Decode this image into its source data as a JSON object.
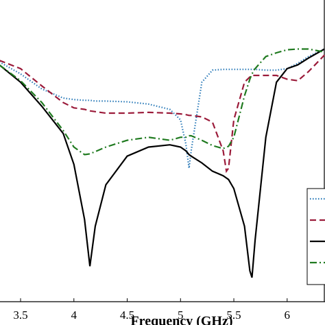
{
  "chart_data": {
    "type": "line",
    "xlabel": "Frequency (GHz)",
    "x": [
      3.3,
      3.5,
      3.7,
      3.9,
      4.0,
      4.1,
      4.15,
      4.2,
      4.3,
      4.5,
      4.7,
      4.9,
      5.0,
      5.05,
      5.08,
      5.1,
      5.2,
      5.3,
      5.4,
      5.43,
      5.45,
      5.5,
      5.6,
      5.65,
      5.67,
      5.7,
      5.8,
      5.9,
      6.0,
      6.1,
      6.2,
      6.35
    ],
    "series": [
      {
        "color": "#2a7ab8",
        "style": "dotted",
        "values": [
          -8.2,
          -9.8,
          -11.8,
          -13,
          -13.2,
          -13.3,
          -13.3,
          -13.4,
          -13.4,
          -13.5,
          -13.8,
          -14.5,
          -15.9,
          -19.1,
          -22.3,
          -20,
          -10.9,
          -9.3,
          -9.2,
          -9.2,
          -9.2,
          -9.2,
          -9.2,
          -9.2,
          -9.2,
          -9.2,
          -9.3,
          -9.3,
          -9.1,
          -8.4,
          -7.5,
          -6.5
        ]
      },
      {
        "color": "#9b1b3a",
        "style": "dashed",
        "values": [
          -8,
          -9.1,
          -11.4,
          -13.6,
          -14.3,
          -14.5,
          -14.7,
          -14.8,
          -15,
          -15,
          -14.9,
          -15,
          -15.1,
          -15.2,
          -15.3,
          -15.3,
          -15.5,
          -16.2,
          -20,
          -22.7,
          -22.3,
          -15.9,
          -10.9,
          -10.2,
          -10,
          -10,
          -10,
          -10,
          -10.5,
          -10.7,
          -9.5,
          -7.3
        ]
      },
      {
        "color": "#000000",
        "style": "solid",
        "values": [
          -8.6,
          -10.9,
          -14.1,
          -17.7,
          -21.8,
          -29.1,
          -35.3,
          -30,
          -24.5,
          -20.7,
          -19.5,
          -19.2,
          -19.5,
          -20,
          -20.5,
          -20.7,
          -21.6,
          -22.7,
          -23.3,
          -23.6,
          -23.8,
          -25,
          -30,
          -35.9,
          -36.8,
          -31.8,
          -18.2,
          -10.9,
          -9.1,
          -8.6,
          -7.7,
          -6.5
        ]
      },
      {
        "color": "#1f7a1f",
        "style": "dashdot",
        "values": [
          -8.6,
          -10.7,
          -13.6,
          -17.3,
          -19.5,
          -20.5,
          -20.4,
          -20.1,
          -19.5,
          -18.6,
          -18.2,
          -18.6,
          -18.2,
          -18.2,
          -18,
          -18,
          -18.6,
          -19.3,
          -19.7,
          -19.5,
          -19.4,
          -18.2,
          -12.7,
          -10.5,
          -9.8,
          -9.1,
          -7.5,
          -7,
          -6.6,
          -6.5,
          -6.5,
          -6.9
        ]
      }
    ],
    "xlim": [
      3.307,
      6.355
    ],
    "xticks": [
      3.5,
      4,
      4.5,
      5,
      5.5,
      6
    ],
    "ylim": [
      -40,
      0
    ]
  }
}
